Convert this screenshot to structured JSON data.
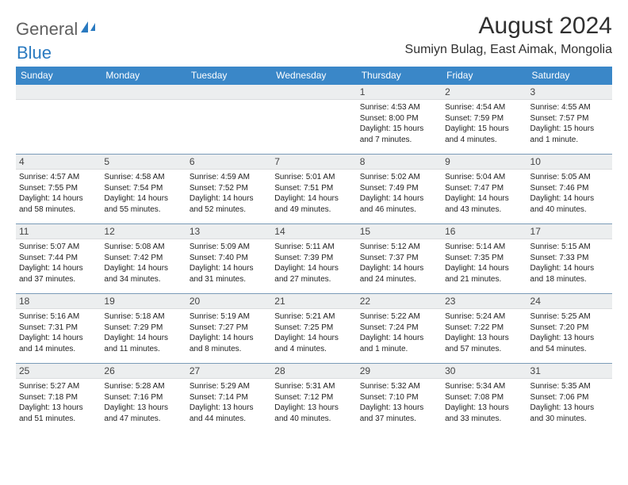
{
  "logo": {
    "part1": "General",
    "part2": "Blue"
  },
  "title": "August 2024",
  "location": "Sumiyn Bulag, East Aimak, Mongolia",
  "day_headers": [
    "Sunday",
    "Monday",
    "Tuesday",
    "Wednesday",
    "Thursday",
    "Friday",
    "Saturday"
  ],
  "colors": {
    "header_bg": "#3a87c8",
    "header_text": "#ffffff",
    "date_bg": "#eceeef",
    "border": "#7a9bb8",
    "logo_gray": "#5f5f5f",
    "logo_blue": "#2a7ac0"
  },
  "weeks": [
    [
      {
        "date": "",
        "lines": []
      },
      {
        "date": "",
        "lines": []
      },
      {
        "date": "",
        "lines": []
      },
      {
        "date": "",
        "lines": []
      },
      {
        "date": "1",
        "lines": [
          "Sunrise: 4:53 AM",
          "Sunset: 8:00 PM",
          "Daylight: 15 hours and 7 minutes."
        ]
      },
      {
        "date": "2",
        "lines": [
          "Sunrise: 4:54 AM",
          "Sunset: 7:59 PM",
          "Daylight: 15 hours and 4 minutes."
        ]
      },
      {
        "date": "3",
        "lines": [
          "Sunrise: 4:55 AM",
          "Sunset: 7:57 PM",
          "Daylight: 15 hours and 1 minute."
        ]
      }
    ],
    [
      {
        "date": "4",
        "lines": [
          "Sunrise: 4:57 AM",
          "Sunset: 7:55 PM",
          "Daylight: 14 hours and 58 minutes."
        ]
      },
      {
        "date": "5",
        "lines": [
          "Sunrise: 4:58 AM",
          "Sunset: 7:54 PM",
          "Daylight: 14 hours and 55 minutes."
        ]
      },
      {
        "date": "6",
        "lines": [
          "Sunrise: 4:59 AM",
          "Sunset: 7:52 PM",
          "Daylight: 14 hours and 52 minutes."
        ]
      },
      {
        "date": "7",
        "lines": [
          "Sunrise: 5:01 AM",
          "Sunset: 7:51 PM",
          "Daylight: 14 hours and 49 minutes."
        ]
      },
      {
        "date": "8",
        "lines": [
          "Sunrise: 5:02 AM",
          "Sunset: 7:49 PM",
          "Daylight: 14 hours and 46 minutes."
        ]
      },
      {
        "date": "9",
        "lines": [
          "Sunrise: 5:04 AM",
          "Sunset: 7:47 PM",
          "Daylight: 14 hours and 43 minutes."
        ]
      },
      {
        "date": "10",
        "lines": [
          "Sunrise: 5:05 AM",
          "Sunset: 7:46 PM",
          "Daylight: 14 hours and 40 minutes."
        ]
      }
    ],
    [
      {
        "date": "11",
        "lines": [
          "Sunrise: 5:07 AM",
          "Sunset: 7:44 PM",
          "Daylight: 14 hours and 37 minutes."
        ]
      },
      {
        "date": "12",
        "lines": [
          "Sunrise: 5:08 AM",
          "Sunset: 7:42 PM",
          "Daylight: 14 hours and 34 minutes."
        ]
      },
      {
        "date": "13",
        "lines": [
          "Sunrise: 5:09 AM",
          "Sunset: 7:40 PM",
          "Daylight: 14 hours and 31 minutes."
        ]
      },
      {
        "date": "14",
        "lines": [
          "Sunrise: 5:11 AM",
          "Sunset: 7:39 PM",
          "Daylight: 14 hours and 27 minutes."
        ]
      },
      {
        "date": "15",
        "lines": [
          "Sunrise: 5:12 AM",
          "Sunset: 7:37 PM",
          "Daylight: 14 hours and 24 minutes."
        ]
      },
      {
        "date": "16",
        "lines": [
          "Sunrise: 5:14 AM",
          "Sunset: 7:35 PM",
          "Daylight: 14 hours and 21 minutes."
        ]
      },
      {
        "date": "17",
        "lines": [
          "Sunrise: 5:15 AM",
          "Sunset: 7:33 PM",
          "Daylight: 14 hours and 18 minutes."
        ]
      }
    ],
    [
      {
        "date": "18",
        "lines": [
          "Sunrise: 5:16 AM",
          "Sunset: 7:31 PM",
          "Daylight: 14 hours and 14 minutes."
        ]
      },
      {
        "date": "19",
        "lines": [
          "Sunrise: 5:18 AM",
          "Sunset: 7:29 PM",
          "Daylight: 14 hours and 11 minutes."
        ]
      },
      {
        "date": "20",
        "lines": [
          "Sunrise: 5:19 AM",
          "Sunset: 7:27 PM",
          "Daylight: 14 hours and 8 minutes."
        ]
      },
      {
        "date": "21",
        "lines": [
          "Sunrise: 5:21 AM",
          "Sunset: 7:25 PM",
          "Daylight: 14 hours and 4 minutes."
        ]
      },
      {
        "date": "22",
        "lines": [
          "Sunrise: 5:22 AM",
          "Sunset: 7:24 PM",
          "Daylight: 14 hours and 1 minute."
        ]
      },
      {
        "date": "23",
        "lines": [
          "Sunrise: 5:24 AM",
          "Sunset: 7:22 PM",
          "Daylight: 13 hours and 57 minutes."
        ]
      },
      {
        "date": "24",
        "lines": [
          "Sunrise: 5:25 AM",
          "Sunset: 7:20 PM",
          "Daylight: 13 hours and 54 minutes."
        ]
      }
    ],
    [
      {
        "date": "25",
        "lines": [
          "Sunrise: 5:27 AM",
          "Sunset: 7:18 PM",
          "Daylight: 13 hours and 51 minutes."
        ]
      },
      {
        "date": "26",
        "lines": [
          "Sunrise: 5:28 AM",
          "Sunset: 7:16 PM",
          "Daylight: 13 hours and 47 minutes."
        ]
      },
      {
        "date": "27",
        "lines": [
          "Sunrise: 5:29 AM",
          "Sunset: 7:14 PM",
          "Daylight: 13 hours and 44 minutes."
        ]
      },
      {
        "date": "28",
        "lines": [
          "Sunrise: 5:31 AM",
          "Sunset: 7:12 PM",
          "Daylight: 13 hours and 40 minutes."
        ]
      },
      {
        "date": "29",
        "lines": [
          "Sunrise: 5:32 AM",
          "Sunset: 7:10 PM",
          "Daylight: 13 hours and 37 minutes."
        ]
      },
      {
        "date": "30",
        "lines": [
          "Sunrise: 5:34 AM",
          "Sunset: 7:08 PM",
          "Daylight: 13 hours and 33 minutes."
        ]
      },
      {
        "date": "31",
        "lines": [
          "Sunrise: 5:35 AM",
          "Sunset: 7:06 PM",
          "Daylight: 13 hours and 30 minutes."
        ]
      }
    ]
  ]
}
